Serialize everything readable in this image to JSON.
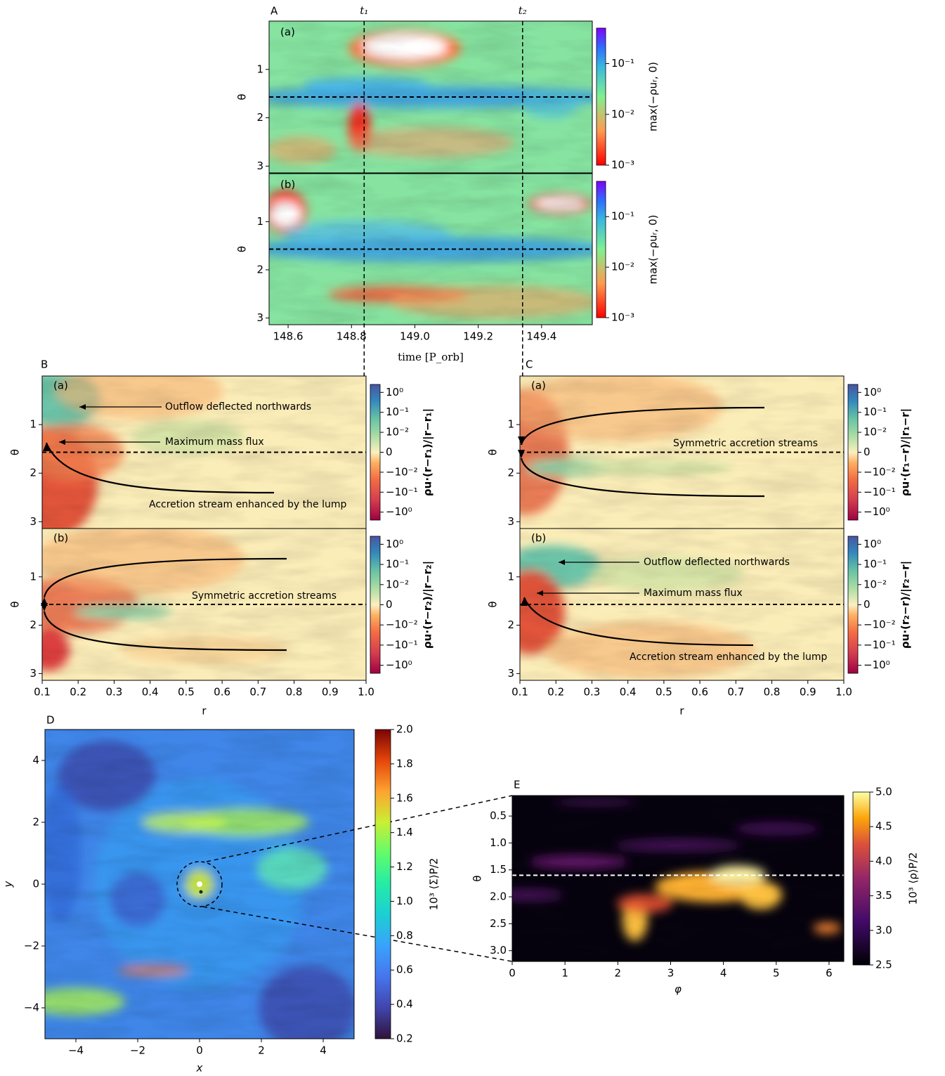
{
  "A": {
    "label": "A",
    "markers": [
      "t₁",
      "t₂"
    ],
    "marker_values": [
      148.84,
      149.34
    ],
    "subpanels": [
      "(a)",
      "(b)"
    ],
    "xlabel": "time [P_orb]",
    "ylabel": "θ",
    "xlim": [
      148.54,
      149.56
    ],
    "xticks": [
      148.6,
      148.8,
      {
        "value": 149,
        "label": "149.0"
      },
      149.2,
      149.4
    ],
    "ylim": [
      0,
      3.14
    ],
    "yticks": [
      1,
      2,
      3
    ],
    "midline": 1.57,
    "colorbar": {
      "label": "max(−ρuᵣ, 0)",
      "scale": "log",
      "lim": [
        0.001,
        0.5
      ],
      "ticks": [
        {
          "value": 0.1,
          "label": "10⁻¹"
        },
        {
          "value": 0.01,
          "label": "10⁻²"
        },
        {
          "value": 0.001,
          "label": "10⁻³"
        }
      ]
    }
  },
  "B": {
    "label": "B",
    "subpanels": [
      {
        "tag": "(a)",
        "colorbar_label": "ρu·(r−r₁)/|r−r₁|",
        "annotations": [
          "Outflow deflected northwards",
          "Maximum mass flux",
          "Accretion stream enhanced by the lump"
        ]
      },
      {
        "tag": "(b)",
        "colorbar_label": "ρu·(r−r₂)/|r−r₂|",
        "annotations": [
          "Symmetric accretion streams"
        ]
      }
    ],
    "xlabel": "r",
    "ylabel": "θ",
    "xlim": [
      0.1,
      1
    ],
    "xticks": [
      0.1,
      0.2,
      0.3,
      0.4,
      0.5,
      0.6,
      0.7,
      0.8,
      0.9,
      {
        "value": 1,
        "label": "1.0"
      }
    ],
    "ylim": [
      0,
      3.14
    ],
    "yticks": [
      1,
      2,
      3
    ],
    "midline": 1.57,
    "colorbar": {
      "scale": "symlog",
      "linthresh": 0.01,
      "lim": [
        -2.5,
        2.5
      ],
      "ticks": [
        {
          "value": 1,
          "label": "10⁰"
        },
        {
          "value": 0.1,
          "label": "10⁻¹"
        },
        {
          "value": 0.01,
          "label": "10⁻²"
        },
        0,
        {
          "value": -0.01,
          "label": "−10⁻²"
        },
        {
          "value": -0.1,
          "label": "−10⁻¹"
        },
        {
          "value": -1,
          "label": "−10⁰"
        }
      ]
    }
  },
  "C": {
    "label": "C",
    "subpanels": [
      {
        "tag": "(a)",
        "colorbar_label": "ρu·(r₁−r)/|r₁−r|",
        "annotations": [
          "Symmetric accretion streams"
        ]
      },
      {
        "tag": "(b)",
        "colorbar_label": "ρu·(r₂−r)/|r₂−r|",
        "annotations": [
          "Outflow deflected northwards",
          "Maximum mass flux",
          "Accretion stream enhanced by the lump"
        ]
      }
    ],
    "xlabel": "r",
    "ylabel": "θ",
    "xlim": [
      0.1,
      1
    ],
    "xticks": [
      0.1,
      0.2,
      0.3,
      0.4,
      0.5,
      0.6,
      0.7,
      0.8,
      0.9,
      {
        "value": 1,
        "label": "1.0"
      }
    ],
    "ylim": [
      0,
      3.14
    ],
    "yticks": [
      1,
      2,
      3
    ],
    "midline": 1.57,
    "colorbar": {
      "scale": "symlog",
      "linthresh": 0.01,
      "lim": [
        -2.5,
        2.5
      ],
      "ticks": [
        {
          "value": 1,
          "label": "10⁰"
        },
        {
          "value": 0.1,
          "label": "10⁻¹"
        },
        {
          "value": 0.01,
          "label": "10⁻²"
        },
        0,
        {
          "value": -0.01,
          "label": "−10⁻²"
        },
        {
          "value": -0.1,
          "label": "−10⁻¹"
        },
        {
          "value": -1,
          "label": "−10⁰"
        }
      ]
    }
  },
  "D": {
    "label": "D",
    "xlabel": "x",
    "ylabel": "y",
    "xlim": [
      -5,
      5
    ],
    "ylim": [
      -5,
      5
    ],
    "xticks": [
      {
        "value": -4,
        "label": "−4"
      },
      {
        "value": -2,
        "label": "−2"
      },
      0,
      2,
      4
    ],
    "yticks": [
      {
        "value": -4,
        "label": "−4"
      },
      {
        "value": -2,
        "label": "−2"
      },
      0,
      2,
      4
    ],
    "colorbar": {
      "label": "10³ ⟨Σ⟩P/2",
      "scale": "linear",
      "lim": [
        0.2,
        2
      ],
      "ticks": [
        0.2,
        0.4,
        0.6,
        0.8,
        {
          "value": 1,
          "label": "1.0"
        },
        1.2,
        1.4,
        1.6,
        1.8,
        {
          "value": 2,
          "label": "2.0"
        }
      ]
    }
  },
  "E": {
    "label": "E",
    "xlabel": "φ",
    "ylabel": "θ",
    "xlim": [
      0,
      6.28
    ],
    "ylim": [
      0.12,
      3.2
    ],
    "xticks": [
      0,
      1,
      2,
      3,
      4,
      5,
      6
    ],
    "yticks": [
      0.5,
      {
        "value": 1,
        "label": "1.0"
      },
      1.5,
      {
        "value": 2,
        "label": "2.0"
      },
      2.5,
      {
        "value": 3,
        "label": "3.0"
      }
    ],
    "midline": 1.6,
    "colorbar": {
      "label": "10³ ⟨ρ⟩P/2",
      "scale": "linear",
      "lim": [
        2.5,
        5
      ],
      "ticks": [
        2.5,
        {
          "value": 3,
          "label": "3.0"
        },
        3.5,
        {
          "value": 4,
          "label": "4.0"
        },
        4.5,
        {
          "value": 5,
          "label": "5.0"
        }
      ]
    }
  }
}
